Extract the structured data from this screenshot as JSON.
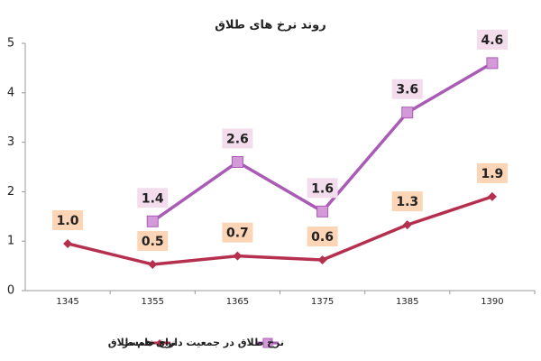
{
  "chart_data": {
    "type": "line",
    "title": "روند نرخ های طلاق",
    "categories": [
      "1345",
      "1355",
      "1365",
      "1375",
      "1385",
      "1390"
    ],
    "series": [
      {
        "name": "نرخ خام طلاق",
        "color": "#b5304f",
        "values": [
          0.95,
          0.53,
          0.7,
          0.62,
          1.33,
          1.9
        ],
        "value_labels": [
          "1.0",
          "0.5",
          "0.7",
          "0.6",
          "1.3",
          "1.9"
        ],
        "label_color": "#fbd5b5"
      },
      {
        "name": "نرخ طلاق در جمعیت دارای همسر",
        "color": "#a95bb5",
        "values": [
          null,
          1.4,
          2.6,
          1.6,
          3.6,
          4.6
        ],
        "label_color": "#f3dcec"
      }
    ],
    "ylim": [
      0,
      5
    ],
    "yticks": [
      0,
      1,
      2,
      3,
      4,
      5
    ],
    "grid": false
  }
}
